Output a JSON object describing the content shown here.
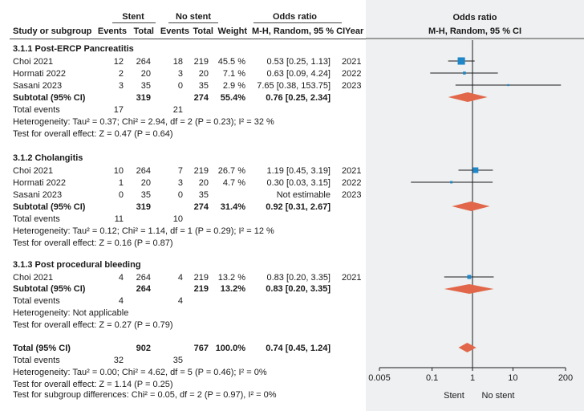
{
  "header": {
    "group_stent": "Stent",
    "group_no_stent": "No stent",
    "odds_ratio": "Odds ratio",
    "col_study": "Study or subgroup",
    "col_events1": "Events",
    "col_total1": "Total",
    "col_events2": "Events",
    "col_total2": "Total",
    "col_weight": "Weight",
    "col_method": "M-H, Random, 95 % CI",
    "col_year": "Year",
    "plot_title": "Odds ratio",
    "plot_method": "M-H, Random, 95 % CI"
  },
  "subgroups": [
    {
      "title": "3.1.1 Post-ERCP Pancreatitis",
      "studies": [
        {
          "name": "Choi 2021",
          "e1": "12",
          "t1": "264",
          "e2": "18",
          "t2": "219",
          "weight": "45.5 %",
          "ci": "0.53 [0.25, 1.13]",
          "year": "2021"
        },
        {
          "name": "Hormati 2022",
          "e1": "2",
          "t1": "20",
          "e2": "3",
          "t2": "20",
          "weight": "7.1 %",
          "ci": "0.63 [0.09, 4.24]",
          "year": "2022"
        },
        {
          "name": "Sasani 2023",
          "e1": "3",
          "t1": "35",
          "e2": "0",
          "t2": "35",
          "weight": "2.9 %",
          "ci": "7.65 [0.38, 153.75]",
          "year": "2023"
        }
      ],
      "subtotal": {
        "label": "Subtotal (95% CI)",
        "t1": "319",
        "t2": "274",
        "weight": "55.4%",
        "ci": "0.76 [0.25, 2.34]"
      },
      "total_events": {
        "label": "Total events",
        "e1": "17",
        "e2": "21"
      },
      "heterogeneity": "Heterogeneity: Tau² = 0.37; Chi² = 2.94, df = 2 (P = 0.23); I² = 32 %",
      "overall": "Test for overall effect: Z = 0.47 (P = 0.64)"
    },
    {
      "title": "3.1.2 Cholangitis",
      "studies": [
        {
          "name": "Choi 2021",
          "e1": "10",
          "t1": "264",
          "e2": "7",
          "t2": "219",
          "weight": "26.7 %",
          "ci": "1.19 [0.45, 3.19]",
          "year": "2021"
        },
        {
          "name": "Hormati 2022",
          "e1": "1",
          "t1": "20",
          "e2": "3",
          "t2": "20",
          "weight": "4.7 %",
          "ci": "0.30 [0.03, 3.15]",
          "year": "2022"
        },
        {
          "name": "Sasani 2023",
          "e1": "0",
          "t1": "35",
          "e2": "0",
          "t2": "35",
          "weight": "",
          "ci": "Not estimable",
          "year": "2023"
        }
      ],
      "subtotal": {
        "label": "Subtotal (95% CI)",
        "t1": "319",
        "t2": "274",
        "weight": "31.4%",
        "ci": "0.92 [0.31, 2.67]"
      },
      "total_events": {
        "label": "Total events",
        "e1": "11",
        "e2": "10"
      },
      "heterogeneity": "Heterogeneity: Tau² = 0.12; Chi² = 1.14, df = 1 (P = 0.29); I² = 12 %",
      "overall": "Test for overall effect: Z = 0.16 (P = 0.87)"
    },
    {
      "title": "3.1.3 Post procedural bleeding",
      "studies": [
        {
          "name": "Choi 2021",
          "e1": "4",
          "t1": "264",
          "e2": "4",
          "t2": "219",
          "weight": "13.2 %",
          "ci": "0.83 [0.20, 3.35]",
          "year": "2021"
        }
      ],
      "subtotal": {
        "label": "Subtotal (95% CI)",
        "t1": "264",
        "t2": "219",
        "weight": "13.2%",
        "ci": "0.83 [0.20, 3.35]"
      },
      "total_events": {
        "label": "Total events",
        "e1": "4",
        "e2": "4"
      },
      "heterogeneity": "Heterogeneity: Not applicable",
      "overall": "Test for overall effect: Z = 0.27 (P = 0.79)"
    }
  ],
  "total": {
    "label": "Total (95% CI)",
    "t1": "902",
    "t2": "767",
    "weight": "100.0%",
    "ci": "0.74 [0.45, 1.24]",
    "events_label": "Total events",
    "e1": "32",
    "e2": "35",
    "heterogeneity": "Heterogeneity: Tau² = 0.00; Chi² = 4.62, df = 5 (P = 0.46); I² = 0%",
    "overall": "Test for overall effect: Z = 1.14 (P = 0.25)",
    "subgroup_diff": "Test for subgroup differences: Chi² = 0.05, df = 2 (P = 0.97), I² = 0%"
  },
  "colors": {
    "square": "#1f86c8",
    "diamond": "#e2674a",
    "line": "#1a1a1a",
    "panel": "#eef0f1"
  },
  "chart_data": {
    "type": "forest",
    "title": "Odds ratio",
    "subtitle": "M-H, Random, 95 % CI",
    "xscale": "log",
    "xlim": [
      0.005,
      200
    ],
    "ticks": [
      "0.005",
      "0.1",
      "1",
      "10",
      "200"
    ],
    "tick_values": [
      0.005,
      0.1,
      1,
      10,
      200
    ],
    "favours_left": "Stent",
    "favours_right": "No stent",
    "rows": [
      {
        "label": "Choi 2021 (Pancreatitis)",
        "kind": "study",
        "or": 0.53,
        "lo": 0.25,
        "hi": 1.13,
        "weight": 45.5
      },
      {
        "label": "Hormati 2022 (Pancreatitis)",
        "kind": "study",
        "or": 0.63,
        "lo": 0.09,
        "hi": 4.24,
        "weight": 7.1
      },
      {
        "label": "Sasani 2023 (Pancreatitis)",
        "kind": "study",
        "or": 7.65,
        "lo": 0.38,
        "hi": 153.75,
        "weight": 2.9
      },
      {
        "label": "Subtotal Pancreatitis",
        "kind": "diamond",
        "or": 0.76,
        "lo": 0.25,
        "hi": 2.34
      },
      {
        "label": "Choi 2021 (Cholangitis)",
        "kind": "study",
        "or": 1.19,
        "lo": 0.45,
        "hi": 3.19,
        "weight": 26.7
      },
      {
        "label": "Hormati 2022 (Cholangitis)",
        "kind": "study",
        "or": 0.3,
        "lo": 0.03,
        "hi": 3.15,
        "weight": 4.7
      },
      {
        "label": "Subtotal Cholangitis",
        "kind": "diamond",
        "or": 0.92,
        "lo": 0.31,
        "hi": 2.67
      },
      {
        "label": "Choi 2021 (Bleeding)",
        "kind": "study",
        "or": 0.83,
        "lo": 0.2,
        "hi": 3.35,
        "weight": 13.2
      },
      {
        "label": "Subtotal Bleeding",
        "kind": "diamond",
        "or": 0.83,
        "lo": 0.2,
        "hi": 3.35
      },
      {
        "label": "Total",
        "kind": "diamond",
        "or": 0.74,
        "lo": 0.45,
        "hi": 1.24
      }
    ]
  }
}
